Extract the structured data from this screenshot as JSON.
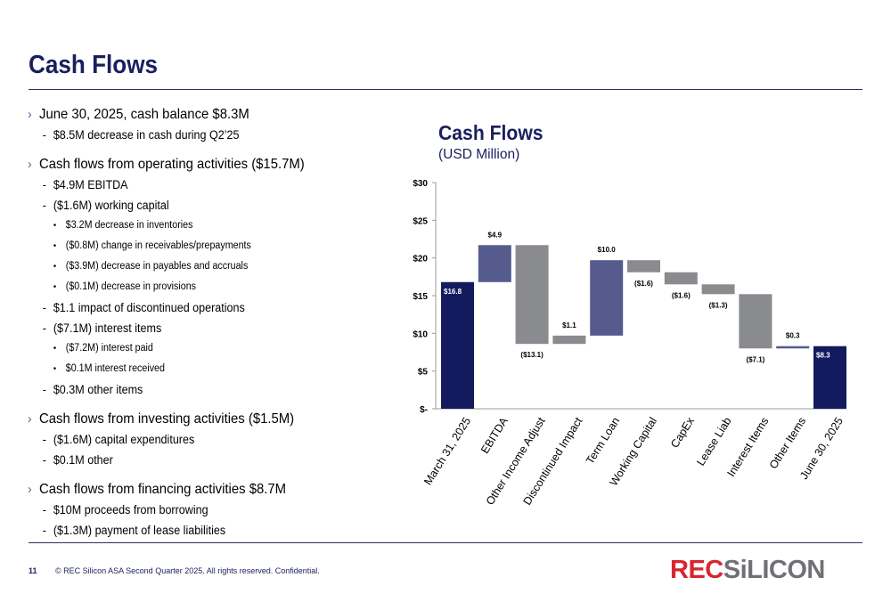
{
  "title": "Cash Flows",
  "bullets": [
    {
      "level": 1,
      "text": "June 30, 2025, cash balance $8.3M"
    },
    {
      "level": 2,
      "text": "$8.5M decrease in cash during Q2’25"
    },
    {
      "level": 1,
      "text": "Cash flows from operating activities ($15.7M)",
      "gap": true
    },
    {
      "level": 2,
      "text": "$4.9M EBITDA"
    },
    {
      "level": 2,
      "text": "($1.6M) working capital"
    },
    {
      "level": 3,
      "text": "$3.2M decrease in inventories"
    },
    {
      "level": 3,
      "text": "($0.8M) change in receivables/prepayments"
    },
    {
      "level": 3,
      "text": "($3.9M) decrease in payables and accruals"
    },
    {
      "level": 3,
      "text": "($0.1M) decrease in provisions"
    },
    {
      "level": 2,
      "text": "$1.1 impact of discontinued operations"
    },
    {
      "level": 2,
      "text": "($7.1M) interest items"
    },
    {
      "level": 3,
      "text": "($7.2M) interest paid"
    },
    {
      "level": 3,
      "text": "$0.1M interest received"
    },
    {
      "level": 2,
      "text": "$0.3M other items"
    },
    {
      "level": 1,
      "text": "Cash flows from investing activities ($1.5M)",
      "gap": true
    },
    {
      "level": 2,
      "text": "($1.6M) capital expenditures"
    },
    {
      "level": 2,
      "text": "$0.1M other"
    },
    {
      "level": 1,
      "text": "Cash flows from financing activities $8.7M",
      "gap": true
    },
    {
      "level": 2,
      "text": "$10M proceeds from borrowing"
    },
    {
      "level": 2,
      "text": "($1.3M) payment of lease liabilities"
    }
  ],
  "chart_data": {
    "type": "bar",
    "subtype": "waterfall",
    "title": "Cash Flows",
    "subtitle": "(USD Million)",
    "ylim": [
      0,
      30
    ],
    "yticks": [
      0,
      5,
      10,
      15,
      20,
      25,
      30
    ],
    "ytick_labels": [
      "$-",
      "$5",
      "$10",
      "$15",
      "$20",
      "$25",
      "$30"
    ],
    "grid": false,
    "legend": "none",
    "bars": [
      {
        "category": "March 31, 2025",
        "start": 0,
        "end": 16.8,
        "label": "$16.8",
        "kind": "total"
      },
      {
        "category": "EBITDA",
        "start": 16.8,
        "end": 21.7,
        "label": "$4.9",
        "kind": "increase"
      },
      {
        "category": "Other Income Adjust",
        "start": 21.7,
        "end": 8.6,
        "label": "($13.1)",
        "kind": "decrease"
      },
      {
        "category": "Discontinued Impact",
        "start": 8.6,
        "end": 9.7,
        "label": "$1.1",
        "kind": "decrease"
      },
      {
        "category": "Term Loan",
        "start": 9.7,
        "end": 19.7,
        "label": "$10.0",
        "kind": "increase"
      },
      {
        "category": "Working Capital",
        "start": 19.7,
        "end": 18.1,
        "label": "($1.6)",
        "kind": "decrease"
      },
      {
        "category": "CapEx",
        "start": 18.1,
        "end": 16.5,
        "label": "($1.6)",
        "kind": "decrease"
      },
      {
        "category": "Lease Liab",
        "start": 16.5,
        "end": 15.2,
        "label": "($1.3)",
        "kind": "decrease"
      },
      {
        "category": "Interest Items",
        "start": 15.2,
        "end": 8.0,
        "label": "($7.1)",
        "kind": "decrease"
      },
      {
        "category": "Other Items",
        "start": 8.0,
        "end": 8.3,
        "label": "$0.3",
        "kind": "increase"
      },
      {
        "category": "June 30, 2025",
        "start": 0,
        "end": 8.3,
        "label": "$8.3",
        "kind": "total"
      }
    ]
  },
  "colors": {
    "navy": "#1a1f5e",
    "total": "#131a5e",
    "increase": "#565b8e",
    "decrease": "#8a8b8f",
    "rule": "#2b2f6b",
    "logo_red": "#d7262f",
    "logo_gray": "#6f7176"
  },
  "footer": {
    "page_number": "11",
    "text": "© REC Silicon ASA Second Quarter 2025. All rights reserved. Confidential."
  },
  "logo": {
    "part1": "REC",
    "part2": "SiLICON"
  }
}
